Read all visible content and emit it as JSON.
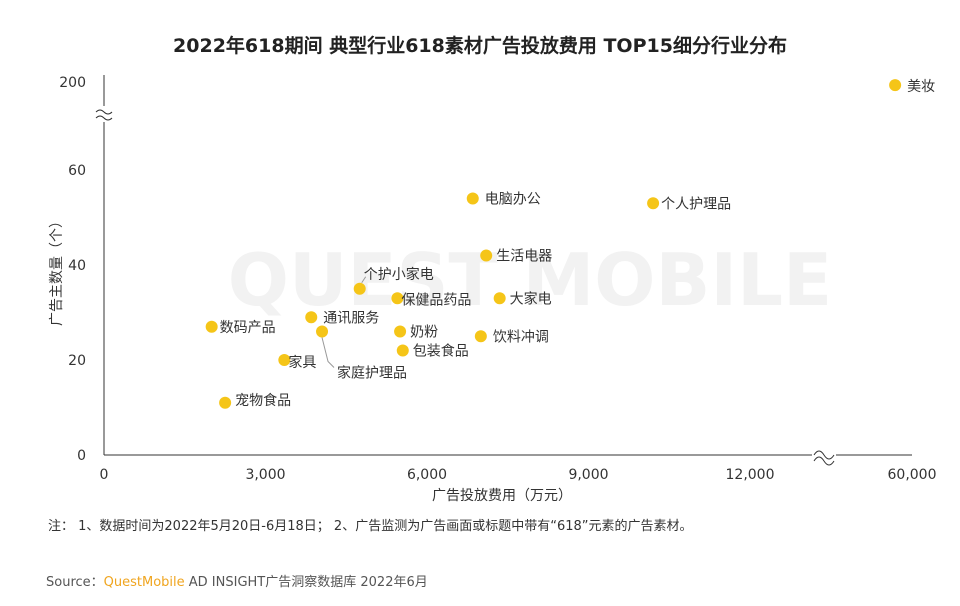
{
  "title": "2022年618期间 典型行业618素材广告投放费用 TOP15细分行业分布",
  "note": "注：  1、数据时间为2022年5月20日-6月18日；  2、广告监测为广告画面或标题中带有“618”元素的广告素材。",
  "source": {
    "label": "Source：",
    "brand": "QuestMobile",
    "text": " AD INSIGHT广告洞察数据库 2022年6月"
  },
  "watermark_text": "QUEST MOBILE",
  "colors": {
    "point": "#f5c518",
    "axis": "#333333",
    "label": "#333333",
    "leader": "#999999",
    "watermark": "#f2f2f2",
    "brand": "#f0a51f"
  },
  "chart_data": {
    "type": "scatter",
    "title": "2022年618期间 典型行业618素材广告投放费用 TOP15细分行业分布",
    "xlabel": "广告投放费用（万元）",
    "ylabel": "广告主数量（个）",
    "xlim": [
      0,
      60000
    ],
    "ylim": [
      0,
      200
    ],
    "x_axis_break": [
      12000,
      60000
    ],
    "y_axis_break": [
      70,
      200
    ],
    "x_ticks": [
      "0",
      "3,000",
      "6,000",
      "9,000",
      "12,000",
      "60,000"
    ],
    "y_ticks": [
      "0",
      "20",
      "40",
      "60",
      "200"
    ],
    "grid": false,
    "legend": "none",
    "points": [
      {
        "label": "美妆",
        "x": 55000,
        "y": 190
      },
      {
        "label": "电脑办公",
        "x": 6850,
        "y": 54
      },
      {
        "label": "个人护理品",
        "x": 10200,
        "y": 53
      },
      {
        "label": "生活电器",
        "x": 7100,
        "y": 42
      },
      {
        "label": "个护小家电",
        "x": 4750,
        "y": 35
      },
      {
        "label": "保健品药品",
        "x": 5450,
        "y": 33
      },
      {
        "label": "大家电",
        "x": 7350,
        "y": 33
      },
      {
        "label": "数码产品",
        "x": 2000,
        "y": 27
      },
      {
        "label": "通讯服务",
        "x": 3850,
        "y": 29
      },
      {
        "label": "家庭护理品",
        "x": 4050,
        "y": 26
      },
      {
        "label": "奶粉",
        "x": 5500,
        "y": 26
      },
      {
        "label": "饮料冲调",
        "x": 7000,
        "y": 25
      },
      {
        "label": "包装食品",
        "x": 5550,
        "y": 22
      },
      {
        "label": "家具",
        "x": 3350,
        "y": 20
      },
      {
        "label": "宠物食品",
        "x": 2250,
        "y": 11
      }
    ]
  }
}
